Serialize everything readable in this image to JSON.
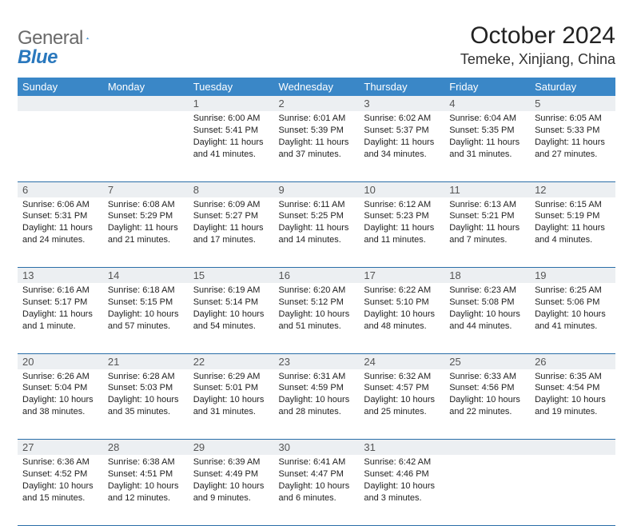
{
  "brand": {
    "part1": "General",
    "part2": "Blue"
  },
  "title": "October 2024",
  "location": "Temeke, Xinjiang, China",
  "style": {
    "header_bg": "#3a87c7",
    "header_fg": "#ffffff",
    "daynum_bg": "#eceff2",
    "daynum_fg": "#555555",
    "border_color": "#2a6ea8",
    "body_bg": "#ffffff",
    "title_fontsize": 30,
    "location_fontsize": 18,
    "dayheader_fontsize": 13,
    "cell_fontsize": 11
  },
  "day_headers": [
    "Sunday",
    "Monday",
    "Tuesday",
    "Wednesday",
    "Thursday",
    "Friday",
    "Saturday"
  ],
  "weeks": [
    {
      "nums": [
        "",
        "",
        "1",
        "2",
        "3",
        "4",
        "5"
      ],
      "cells": [
        null,
        null,
        {
          "sunrise": "Sunrise: 6:00 AM",
          "sunset": "Sunset: 5:41 PM",
          "daylight": "Daylight: 11 hours and 41 minutes."
        },
        {
          "sunrise": "Sunrise: 6:01 AM",
          "sunset": "Sunset: 5:39 PM",
          "daylight": "Daylight: 11 hours and 37 minutes."
        },
        {
          "sunrise": "Sunrise: 6:02 AM",
          "sunset": "Sunset: 5:37 PM",
          "daylight": "Daylight: 11 hours and 34 minutes."
        },
        {
          "sunrise": "Sunrise: 6:04 AM",
          "sunset": "Sunset: 5:35 PM",
          "daylight": "Daylight: 11 hours and 31 minutes."
        },
        {
          "sunrise": "Sunrise: 6:05 AM",
          "sunset": "Sunset: 5:33 PM",
          "daylight": "Daylight: 11 hours and 27 minutes."
        }
      ]
    },
    {
      "nums": [
        "6",
        "7",
        "8",
        "9",
        "10",
        "11",
        "12"
      ],
      "cells": [
        {
          "sunrise": "Sunrise: 6:06 AM",
          "sunset": "Sunset: 5:31 PM",
          "daylight": "Daylight: 11 hours and 24 minutes."
        },
        {
          "sunrise": "Sunrise: 6:08 AM",
          "sunset": "Sunset: 5:29 PM",
          "daylight": "Daylight: 11 hours and 21 minutes."
        },
        {
          "sunrise": "Sunrise: 6:09 AM",
          "sunset": "Sunset: 5:27 PM",
          "daylight": "Daylight: 11 hours and 17 minutes."
        },
        {
          "sunrise": "Sunrise: 6:11 AM",
          "sunset": "Sunset: 5:25 PM",
          "daylight": "Daylight: 11 hours and 14 minutes."
        },
        {
          "sunrise": "Sunrise: 6:12 AM",
          "sunset": "Sunset: 5:23 PM",
          "daylight": "Daylight: 11 hours and 11 minutes."
        },
        {
          "sunrise": "Sunrise: 6:13 AM",
          "sunset": "Sunset: 5:21 PM",
          "daylight": "Daylight: 11 hours and 7 minutes."
        },
        {
          "sunrise": "Sunrise: 6:15 AM",
          "sunset": "Sunset: 5:19 PM",
          "daylight": "Daylight: 11 hours and 4 minutes."
        }
      ]
    },
    {
      "nums": [
        "13",
        "14",
        "15",
        "16",
        "17",
        "18",
        "19"
      ],
      "cells": [
        {
          "sunrise": "Sunrise: 6:16 AM",
          "sunset": "Sunset: 5:17 PM",
          "daylight": "Daylight: 11 hours and 1 minute."
        },
        {
          "sunrise": "Sunrise: 6:18 AM",
          "sunset": "Sunset: 5:15 PM",
          "daylight": "Daylight: 10 hours and 57 minutes."
        },
        {
          "sunrise": "Sunrise: 6:19 AM",
          "sunset": "Sunset: 5:14 PM",
          "daylight": "Daylight: 10 hours and 54 minutes."
        },
        {
          "sunrise": "Sunrise: 6:20 AM",
          "sunset": "Sunset: 5:12 PM",
          "daylight": "Daylight: 10 hours and 51 minutes."
        },
        {
          "sunrise": "Sunrise: 6:22 AM",
          "sunset": "Sunset: 5:10 PM",
          "daylight": "Daylight: 10 hours and 48 minutes."
        },
        {
          "sunrise": "Sunrise: 6:23 AM",
          "sunset": "Sunset: 5:08 PM",
          "daylight": "Daylight: 10 hours and 44 minutes."
        },
        {
          "sunrise": "Sunrise: 6:25 AM",
          "sunset": "Sunset: 5:06 PM",
          "daylight": "Daylight: 10 hours and 41 minutes."
        }
      ]
    },
    {
      "nums": [
        "20",
        "21",
        "22",
        "23",
        "24",
        "25",
        "26"
      ],
      "cells": [
        {
          "sunrise": "Sunrise: 6:26 AM",
          "sunset": "Sunset: 5:04 PM",
          "daylight": "Daylight: 10 hours and 38 minutes."
        },
        {
          "sunrise": "Sunrise: 6:28 AM",
          "sunset": "Sunset: 5:03 PM",
          "daylight": "Daylight: 10 hours and 35 minutes."
        },
        {
          "sunrise": "Sunrise: 6:29 AM",
          "sunset": "Sunset: 5:01 PM",
          "daylight": "Daylight: 10 hours and 31 minutes."
        },
        {
          "sunrise": "Sunrise: 6:31 AM",
          "sunset": "Sunset: 4:59 PM",
          "daylight": "Daylight: 10 hours and 28 minutes."
        },
        {
          "sunrise": "Sunrise: 6:32 AM",
          "sunset": "Sunset: 4:57 PM",
          "daylight": "Daylight: 10 hours and 25 minutes."
        },
        {
          "sunrise": "Sunrise: 6:33 AM",
          "sunset": "Sunset: 4:56 PM",
          "daylight": "Daylight: 10 hours and 22 minutes."
        },
        {
          "sunrise": "Sunrise: 6:35 AM",
          "sunset": "Sunset: 4:54 PM",
          "daylight": "Daylight: 10 hours and 19 minutes."
        }
      ]
    },
    {
      "nums": [
        "27",
        "28",
        "29",
        "30",
        "31",
        "",
        ""
      ],
      "cells": [
        {
          "sunrise": "Sunrise: 6:36 AM",
          "sunset": "Sunset: 4:52 PM",
          "daylight": "Daylight: 10 hours and 15 minutes."
        },
        {
          "sunrise": "Sunrise: 6:38 AM",
          "sunset": "Sunset: 4:51 PM",
          "daylight": "Daylight: 10 hours and 12 minutes."
        },
        {
          "sunrise": "Sunrise: 6:39 AM",
          "sunset": "Sunset: 4:49 PM",
          "daylight": "Daylight: 10 hours and 9 minutes."
        },
        {
          "sunrise": "Sunrise: 6:41 AM",
          "sunset": "Sunset: 4:47 PM",
          "daylight": "Daylight: 10 hours and 6 minutes."
        },
        {
          "sunrise": "Sunrise: 6:42 AM",
          "sunset": "Sunset: 4:46 PM",
          "daylight": "Daylight: 10 hours and 3 minutes."
        },
        null,
        null
      ]
    }
  ]
}
